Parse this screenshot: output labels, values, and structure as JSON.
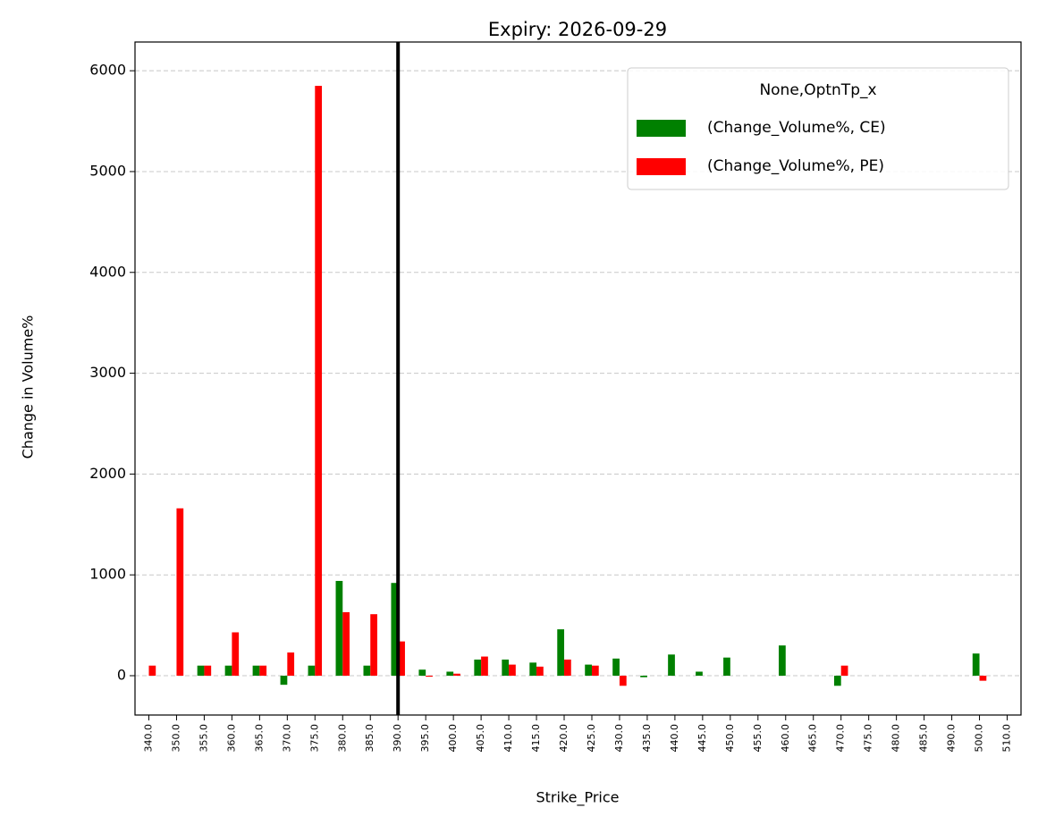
{
  "chart_data": {
    "type": "bar",
    "title": "Expiry: 2026-09-29",
    "x_label": "Strike_Price",
    "y_label": "Change in Volume%",
    "legend_title": "None,OptnTp_x",
    "legend": "upper right",
    "grid": true,
    "vline": "390.0",
    "categories": [
      "340.0",
      "350.0",
      "355.0",
      "360.0",
      "365.0",
      "370.0",
      "375.0",
      "380.0",
      "385.0",
      "390.0",
      "395.0",
      "400.0",
      "405.0",
      "410.0",
      "415.0",
      "420.0",
      "425.0",
      "430.0",
      "435.0",
      "440.0",
      "445.0",
      "450.0",
      "455.0",
      "460.0",
      "465.0",
      "470.0",
      "475.0",
      "480.0",
      "485.0",
      "490.0",
      "500.0",
      "510.0"
    ],
    "series": [
      {
        "name": "(Change_Volume%, CE)",
        "color": "#008000",
        "values": [
          null,
          null,
          100,
          100,
          100,
          -90,
          100,
          940,
          100,
          920,
          60,
          40,
          160,
          160,
          130,
          460,
          110,
          170,
          -15,
          210,
          40,
          180,
          null,
          300,
          null,
          -100,
          null,
          null,
          null,
          null,
          220,
          null
        ]
      },
      {
        "name": "(Change_Volume%, PE)",
        "color": "#ff0000",
        "values": [
          100,
          1660,
          100,
          430,
          100,
          230,
          5850,
          630,
          610,
          340,
          -10,
          20,
          190,
          110,
          90,
          160,
          100,
          -100,
          null,
          null,
          null,
          null,
          null,
          null,
          null,
          100,
          null,
          null,
          null,
          null,
          -50,
          null
        ]
      }
    ],
    "ylim": [
      -390,
      6285
    ],
    "yticks": [
      0,
      1000,
      2000,
      3000,
      4000,
      5000,
      6000
    ]
  }
}
